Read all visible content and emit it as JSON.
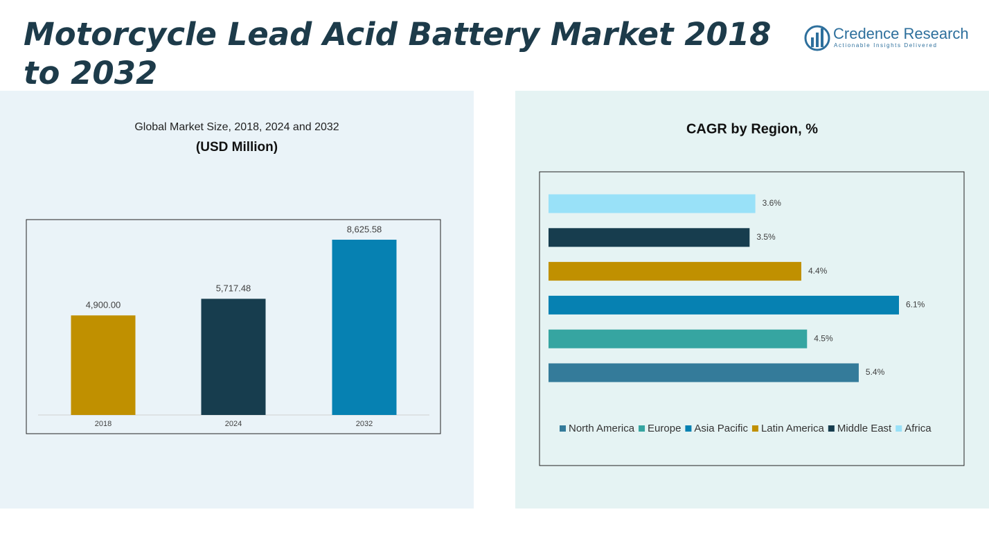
{
  "header": {
    "title": "Motorcycle Lead Acid Battery Market 2018 to 2032",
    "brand": "Credence Research",
    "tagline": "Actionable Insights Delivered"
  },
  "chart_data": [
    {
      "type": "bar",
      "title": "Global Market Size, 2018, 2024 and 2032",
      "subtitle": "(USD Million)",
      "categories": [
        "2018",
        "2024",
        "2032"
      ],
      "values": [
        4900.0,
        5717.48,
        8625.58
      ],
      "value_labels": [
        "4,900.00",
        "5,717.48",
        "8,625.58"
      ],
      "colors": [
        "#c09000",
        "#173d4e",
        "#0681b2"
      ]
    },
    {
      "type": "barh",
      "title": "CAGR by Region, %",
      "legend": "bottom",
      "series": [
        {
          "name": "North America",
          "color": "#347b9a",
          "values": [
            5.4
          ],
          "value_labels": [
            "5.4%"
          ]
        },
        {
          "name": "Europe",
          "color": "#36a5a1",
          "values": [
            4.5
          ],
          "value_labels": [
            "4.5%"
          ]
        },
        {
          "name": "Asia Pacific",
          "color": "#0681b2",
          "values": [
            6.1
          ],
          "value_labels": [
            "6.1%"
          ]
        },
        {
          "name": "Latin America",
          "color": "#c09000",
          "values": [
            4.4
          ],
          "value_labels": [
            "4.4%"
          ]
        },
        {
          "name": "Middle East",
          "color": "#173d4e",
          "values": [
            3.5
          ],
          "value_labels": [
            "3.5%"
          ]
        },
        {
          "name": "Africa",
          "color": "#99e1f8",
          "values": [
            3.6
          ],
          "value_labels": [
            "3.6%"
          ]
        }
      ]
    }
  ]
}
